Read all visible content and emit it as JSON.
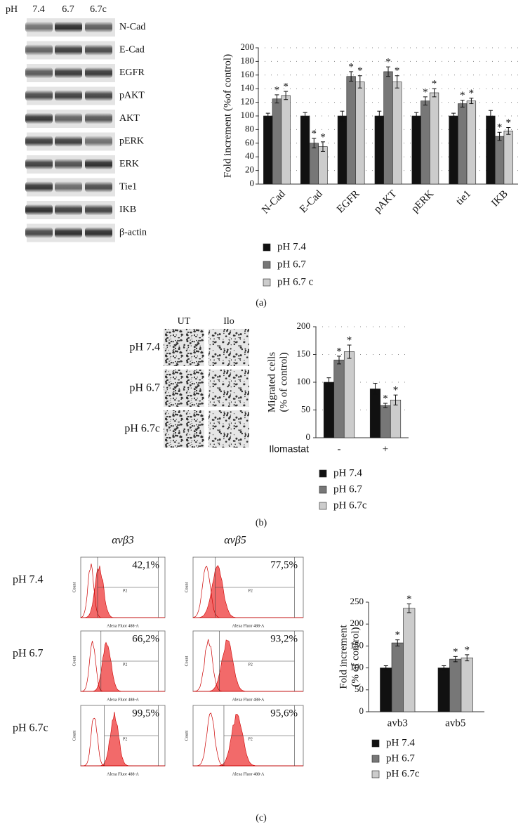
{
  "blot": {
    "header": "pH",
    "lanes": [
      "7.4",
      "6.7",
      "6.7c"
    ],
    "proteins": [
      "N-Cad",
      "E-Cad",
      "EGFR",
      "pAKT",
      "AKT",
      "pERK",
      "ERK",
      "Tie1",
      "IKB",
      "β-actin"
    ]
  },
  "migration": {
    "columns": [
      "UT",
      "Ilo"
    ],
    "rows": [
      "pH 7.4",
      "pH 6.7",
      "pH 6.7c"
    ]
  },
  "flow": {
    "columns": [
      "αvβ3",
      "αvβ5"
    ],
    "rows": [
      "pH 7.4",
      "pH 6.7",
      "pH 6.7c"
    ],
    "percentages": [
      [
        "42,1%",
        "77,5%"
      ],
      [
        "66,2%",
        "93,2%"
      ],
      [
        "99,5%",
        "95,6%"
      ]
    ],
    "xlabel": "Alexa Fluor 488-A",
    "ylabel": "Count",
    "gate": "P2"
  },
  "panels": [
    "(a)",
    "(b)",
    "(c)"
  ],
  "chart_data": [
    {
      "type": "bar",
      "ylabel": "Fold increment (%of control)",
      "categories": [
        "N-Cad",
        "E-Cad",
        "EGFR",
        "pAKT",
        "pERK",
        "tie1",
        "IKB"
      ],
      "series": [
        {
          "name": "pH 7.4",
          "color": "#111111",
          "values": [
            100,
            100,
            100,
            100,
            100,
            100,
            100
          ],
          "errors": [
            4,
            5,
            7,
            7,
            5,
            4,
            8
          ],
          "significance": [
            null,
            null,
            null,
            null,
            null,
            null,
            null
          ]
        },
        {
          "name": "pH 6.7",
          "color": "#777777",
          "values": [
            125,
            60,
            158,
            165,
            122,
            118,
            70
          ],
          "errors": [
            6,
            7,
            7,
            7,
            6,
            5,
            6
          ],
          "significance": [
            "*",
            "*",
            "*",
            "*",
            "*",
            "*",
            "*"
          ]
        },
        {
          "name": "pH 6.7 c",
          "color": "#cccccc",
          "values": [
            130,
            55,
            150,
            150,
            134,
            122,
            78
          ],
          "errors": [
            6,
            7,
            9,
            9,
            6,
            4,
            5
          ],
          "significance": [
            "*",
            "*",
            "*",
            "*",
            "*",
            "*",
            "*"
          ]
        }
      ],
      "ylim": [
        0,
        200
      ],
      "yticks": [
        0,
        20,
        40,
        60,
        80,
        100,
        120,
        140,
        160,
        180,
        200
      ],
      "grid": true,
      "legend": "below"
    },
    {
      "type": "bar",
      "ylabel": [
        "Migrated cells",
        "(% of control)"
      ],
      "xlabel": "Ilomastat",
      "categories": [
        "-",
        "+"
      ],
      "series": [
        {
          "name": "pH 7.4",
          "color": "#111111",
          "values": [
            100,
            88
          ],
          "errors": [
            8,
            10
          ],
          "significance": [
            null,
            null
          ]
        },
        {
          "name": "pH 6.7",
          "color": "#777777",
          "values": [
            140,
            58
          ],
          "errors": [
            7,
            4
          ],
          "significance": [
            "*",
            "*"
          ]
        },
        {
          "name": "pH 6.7c",
          "color": "#cccccc",
          "values": [
            155,
            68
          ],
          "errors": [
            12,
            9
          ],
          "significance": [
            "*",
            "*"
          ]
        }
      ],
      "ylim": [
        0,
        200
      ],
      "yticks": [
        0,
        50,
        100,
        150,
        200
      ],
      "grid": true,
      "legend": "below"
    },
    {
      "type": "bar",
      "ylabel": [
        "Fold increment",
        "(% of control)"
      ],
      "categories": [
        "avb3",
        "avb5"
      ],
      "series": [
        {
          "name": "pH 7.4",
          "color": "#111111",
          "values": [
            100,
            100
          ],
          "errors": [
            5,
            5
          ],
          "significance": [
            null,
            null
          ]
        },
        {
          "name": "pH 6.7",
          "color": "#777777",
          "values": [
            157,
            120
          ],
          "errors": [
            7,
            6
          ],
          "significance": [
            "*",
            "*"
          ]
        },
        {
          "name": "pH 6.7c",
          "color": "#cccccc",
          "values": [
            236,
            123
          ],
          "errors": [
            10,
            7
          ],
          "significance": [
            "*",
            "*"
          ]
        }
      ],
      "ylim": [
        0,
        250
      ],
      "yticks": [
        0,
        50,
        100,
        150,
        200,
        250
      ],
      "grid": false,
      "legend": "below"
    }
  ]
}
